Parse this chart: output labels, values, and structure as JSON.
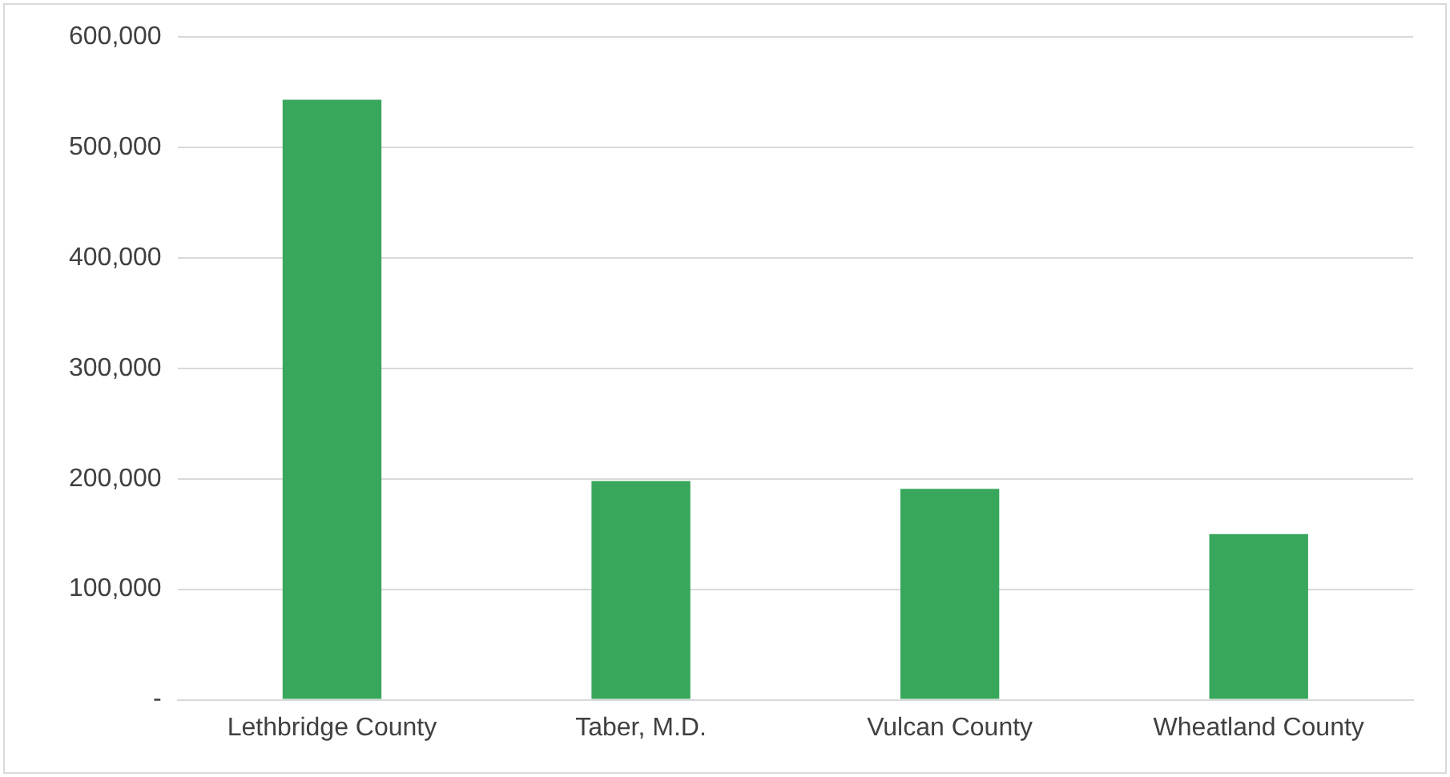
{
  "chart_data": {
    "type": "bar",
    "categories": [
      "Lethbridge County",
      "Taber, M.D.",
      "Vulcan County",
      "Wheatland County"
    ],
    "values": [
      543000,
      198000,
      191000,
      150000
    ],
    "color": "#38a75c",
    "ylim": [
      0,
      600000
    ],
    "yticks": [
      {
        "value": 0,
        "label": "-"
      },
      {
        "value": 100000,
        "label": "100,000"
      },
      {
        "value": 200000,
        "label": "200,000"
      },
      {
        "value": 300000,
        "label": "300,000"
      },
      {
        "value": 400000,
        "label": "400,000"
      },
      {
        "value": 500000,
        "label": "500,000"
      },
      {
        "value": 600000,
        "label": "600,000"
      }
    ],
    "grid": "y"
  }
}
